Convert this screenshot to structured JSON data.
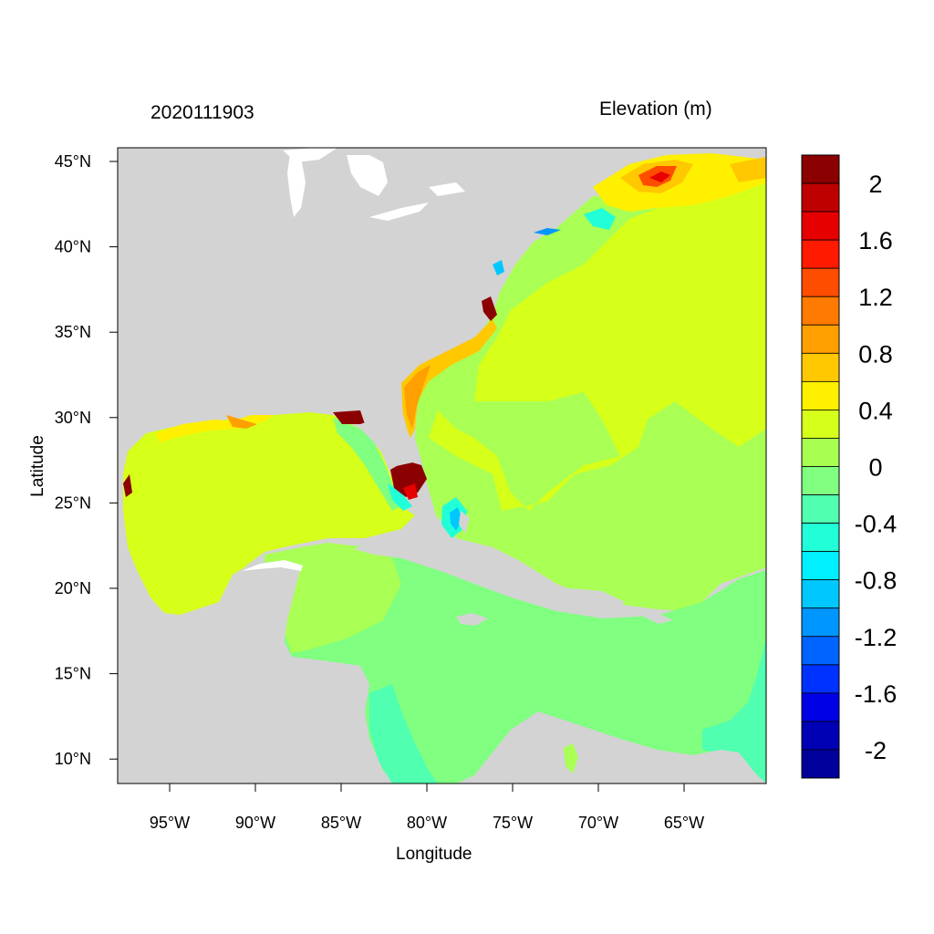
{
  "map": {
    "title_left": "2020111903",
    "title_right": "Elevation (m)",
    "xlabel": "Longitude",
    "ylabel": "Latitude",
    "lon_ticks": [
      "95°W",
      "90°W",
      "85°W",
      "80°W",
      "75°W",
      "70°W",
      "65°W"
    ],
    "lat_ticks": [
      "45°N",
      "40°N",
      "35°N",
      "30°N",
      "25°N",
      "20°N",
      "15°N",
      "10°N"
    ],
    "colorbar": {
      "levels": [
        "2",
        "1.6",
        "1.2",
        "0.8",
        "0.4",
        "0",
        "-0.4",
        "-0.8",
        "-1.2",
        "-1.6",
        "-2"
      ],
      "colors": [
        "#8b0000",
        "#bf0000",
        "#e60000",
        "#ff1a00",
        "#ff4d00",
        "#ff7a00",
        "#ff9f00",
        "#ffc800",
        "#fff000",
        "#d6ff1a",
        "#a8ff50",
        "#80ff80",
        "#50ffb0",
        "#20ffd8",
        "#00f0ff",
        "#00c8ff",
        "#0096ff",
        "#0064ff",
        "#0032ff",
        "#0000e6",
        "#0000b4",
        "#00009b"
      ]
    },
    "colors": {
      "land": "#d3d3d3",
      "ocean_main": "#aaff55",
      "gulf": "#d6ff1a",
      "caribbean": "#80ff80"
    }
  }
}
